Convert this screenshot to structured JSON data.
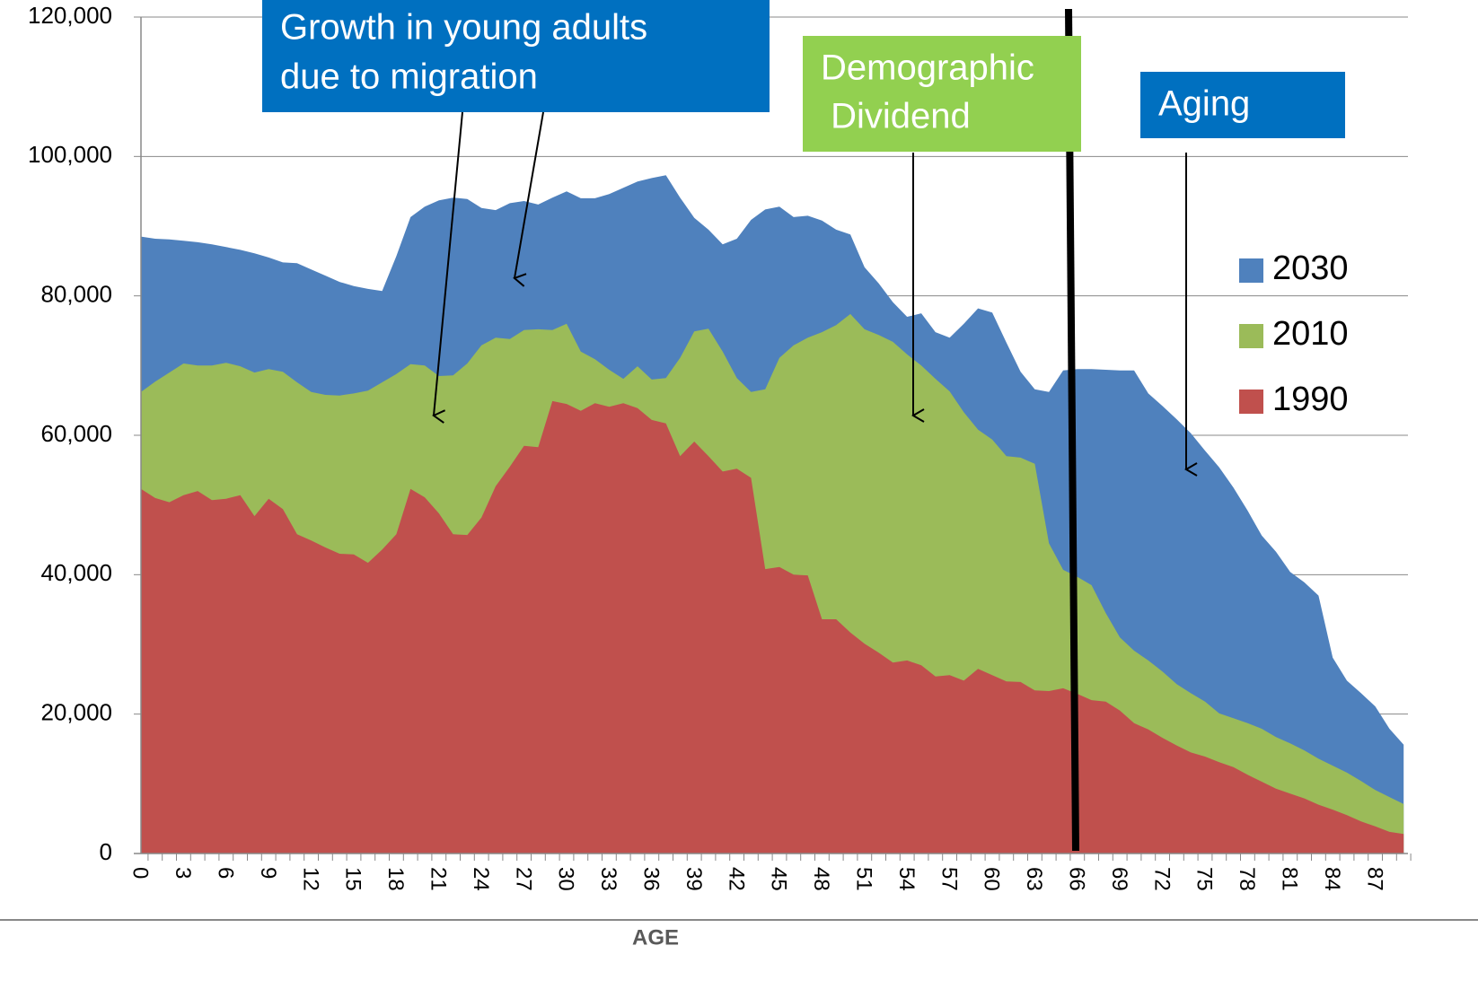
{
  "chart_data": {
    "type": "area",
    "x_label": "AGE",
    "categories": [
      "0",
      null,
      null,
      "3",
      null,
      null,
      "6",
      null,
      null,
      "9",
      null,
      null,
      "12",
      null,
      null,
      "15",
      null,
      null,
      "18",
      null,
      null,
      "21",
      null,
      null,
      "24",
      null,
      null,
      "27",
      null,
      null,
      "30",
      null,
      null,
      "33",
      null,
      null,
      "36",
      null,
      null,
      "39",
      null,
      null,
      "42",
      null,
      null,
      "45",
      null,
      null,
      "48",
      null,
      null,
      "51",
      null,
      null,
      "54",
      null,
      null,
      "57",
      null,
      null,
      "60",
      null,
      null,
      "63",
      null,
      null,
      "66",
      null,
      null,
      "69",
      null,
      null,
      "72",
      null,
      null,
      "75",
      null,
      null,
      "78",
      null,
      null,
      "81",
      null,
      null,
      "84",
      null,
      null,
      "87",
      null,
      null
    ],
    "series": [
      {
        "name": "2030",
        "color": "#4f81bd",
        "values": [
          88500,
          88200,
          88100,
          87900,
          87700,
          87400,
          87000,
          86600,
          86100,
          85500,
          84800,
          84700,
          83800,
          82900,
          82000,
          81400,
          81000,
          80700,
          85700,
          91300,
          92800,
          93700,
          94100,
          93900,
          92600,
          92300,
          93300,
          93600,
          93100,
          94100,
          95000,
          94000,
          94000,
          94600,
          95500,
          96400,
          96900,
          97300,
          94100,
          91200,
          89500,
          87400,
          88200,
          90900,
          92400,
          92800,
          91300,
          91500,
          90800,
          89500,
          88800,
          84100,
          81800,
          79100,
          77000,
          77500,
          74800,
          74000,
          76000,
          78200,
          77600,
          73300,
          69100,
          66600,
          66200,
          69300,
          69500,
          69500,
          69400,
          69300,
          69300,
          66000,
          64200,
          62300,
          60300,
          57800,
          55400,
          52500,
          49200,
          45600,
          43300,
          40400,
          38900,
          37000,
          28100,
          24800,
          23000,
          21100,
          17900,
          15600
        ]
      },
      {
        "name": "2010",
        "color": "#9bbb59",
        "values": [
          66200,
          67700,
          69000,
          70300,
          70000,
          70000,
          70400,
          69900,
          69000,
          69500,
          69100,
          67600,
          66200,
          65800,
          65700,
          66000,
          66400,
          67600,
          68800,
          70200,
          70000,
          68500,
          68600,
          70300,
          72900,
          74000,
          73800,
          75100,
          75200,
          75100,
          76000,
          72000,
          70900,
          69400,
          68100,
          69900,
          68000,
          68200,
          71100,
          74900,
          75300,
          72000,
          68200,
          66200,
          66600,
          71100,
          72900,
          74000,
          74800,
          75800,
          77400,
          75200,
          74400,
          73400,
          71600,
          70000,
          68100,
          66300,
          63300,
          60800,
          59400,
          57000,
          56800,
          55900,
          44500,
          40700,
          39700,
          38500,
          34500,
          31000,
          29100,
          27700,
          26100,
          24300,
          23000,
          21800,
          20100,
          19400,
          18700,
          17900,
          16700,
          15800,
          14800,
          13600,
          12600,
          11600,
          10400,
          9100,
          8100,
          7100
        ]
      },
      {
        "name": "1990",
        "color": "#c0504d",
        "values": [
          52300,
          51000,
          50400,
          51400,
          52000,
          50700,
          50900,
          51400,
          48400,
          50900,
          49400,
          45800,
          44900,
          43900,
          43000,
          42900,
          41700,
          43600,
          45800,
          52300,
          51100,
          48800,
          45800,
          45700,
          48200,
          52700,
          55500,
          58500,
          58300,
          64900,
          64500,
          63500,
          64600,
          64100,
          64600,
          63900,
          62200,
          61700,
          57000,
          59100,
          57000,
          54800,
          55200,
          53900,
          40800,
          41100,
          40000,
          39900,
          33600,
          33600,
          31700,
          30100,
          28800,
          27400,
          27700,
          27000,
          25400,
          25600,
          24800,
          26500,
          25600,
          24700,
          24600,
          23400,
          23300,
          23700,
          22900,
          22000,
          21800,
          20500,
          18700,
          17800,
          16600,
          15500,
          14500,
          13900,
          13100,
          12400,
          11300,
          10300,
          9300,
          8600,
          7900,
          7000,
          6300,
          5500,
          4600,
          3900,
          3100,
          2800
        ]
      }
    ],
    "ylim": [
      0,
      120000
    ],
    "yticks": [
      0,
      {
        "value": 20000,
        "label": "20,000"
      },
      {
        "value": 40000,
        "label": "40,000"
      },
      {
        "value": 60000,
        "label": "60,000"
      },
      {
        "value": 80000,
        "label": "80,000"
      },
      {
        "value": 100000,
        "label": "100,000"
      },
      {
        "value": 120000,
        "label": "120,000"
      }
    ],
    "grid": true,
    "legend": "right",
    "annotations": [
      {
        "text": [
          "Growth in young adults",
          "due to migration"
        ],
        "color": "#0070c0"
      },
      {
        "text": [
          "Demographic",
          " Dividend"
        ],
        "color": "#92d050"
      },
      {
        "text": [
          "Aging"
        ],
        "color": "#0070c0"
      }
    ]
  }
}
